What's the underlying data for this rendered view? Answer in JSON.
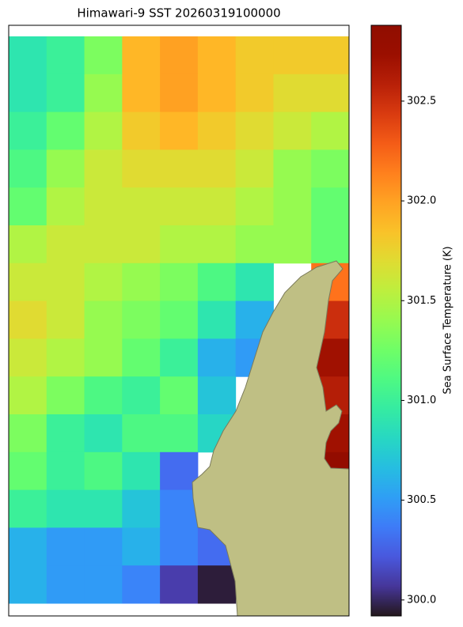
{
  "chart_data": {
    "type": "heatmap",
    "title": "Himawari-9 SST 20260319100000",
    "colormap": "turbo",
    "colorbar_label": "Sea Surface Temperature (K)",
    "clim": [
      299.92,
      302.88
    ],
    "colorbar_ticks": [
      {
        "value": 300.0,
        "label": "300.0"
      },
      {
        "value": 300.5,
        "label": "300.5"
      },
      {
        "value": 301.0,
        "label": "301.0"
      },
      {
        "value": 301.5,
        "label": "301.5"
      },
      {
        "value": 302.0,
        "label": "302.0"
      },
      {
        "value": 302.5,
        "label": "302.5"
      }
    ],
    "z": [
      [
        300.9,
        301.0,
        301.3,
        301.9,
        302.0,
        301.9,
        301.8,
        301.8,
        301.8
      ],
      [
        300.9,
        301.0,
        301.4,
        301.9,
        302.0,
        301.9,
        301.8,
        301.7,
        301.7
      ],
      [
        301.0,
        301.2,
        301.5,
        301.8,
        301.9,
        301.8,
        301.7,
        301.6,
        301.5
      ],
      [
        301.1,
        301.4,
        301.6,
        301.7,
        301.7,
        301.7,
        301.6,
        301.4,
        301.3
      ],
      [
        301.2,
        301.5,
        301.6,
        301.6,
        301.6,
        301.6,
        301.5,
        301.4,
        301.2
      ],
      [
        301.5,
        301.6,
        301.6,
        301.6,
        301.5,
        301.5,
        301.4,
        301.4,
        301.2
      ],
      [
        301.6,
        301.6,
        301.5,
        301.4,
        301.3,
        301.1,
        300.9,
        null,
        302.2
      ],
      [
        301.7,
        301.6,
        301.4,
        301.3,
        301.2,
        300.9,
        300.6,
        null,
        302.5
      ],
      [
        301.6,
        301.5,
        301.4,
        301.2,
        301.0,
        300.6,
        300.5,
        null,
        302.7
      ],
      [
        301.5,
        301.3,
        301.1,
        301.0,
        301.2,
        300.7,
        null,
        null,
        302.6
      ],
      [
        301.3,
        301.0,
        300.9,
        301.1,
        301.1,
        300.8,
        null,
        null,
        302.7
      ],
      [
        301.2,
        301.0,
        301.1,
        300.9,
        300.3,
        null,
        null,
        null,
        302.8
      ],
      [
        301.0,
        300.9,
        300.9,
        300.7,
        300.4,
        null,
        null,
        null,
        null
      ],
      [
        300.6,
        300.5,
        300.5,
        300.6,
        300.4,
        300.3,
        null,
        null,
        null
      ],
      [
        300.6,
        300.5,
        300.5,
        300.4,
        300.1,
        299.95,
        null,
        null,
        null
      ]
    ]
  }
}
